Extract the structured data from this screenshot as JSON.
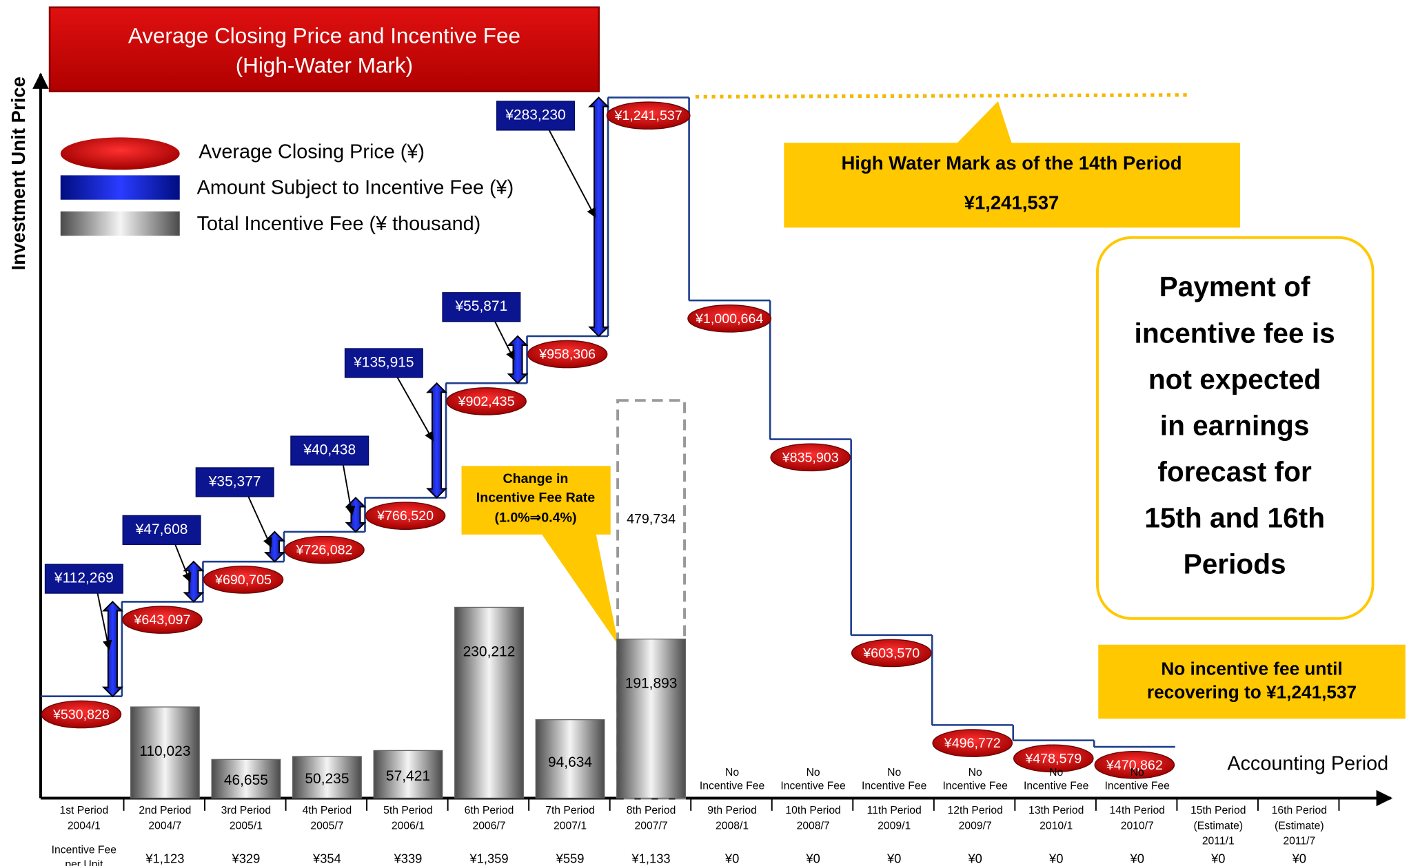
{
  "chart_data": {
    "type": "step",
    "title": "Average Closing Price and Incentive Fee",
    "subtitle": "(High-Water Mark)",
    "y_axis_label": "Investment Unit Price",
    "x_axis_label": "Accounting Period",
    "ylim": [
      410000,
      1266000
    ],
    "y2lim": [
      0,
      870000
    ],
    "categories": [
      "1st Period",
      "2nd Period",
      "3rd Period",
      "4th Period",
      "5th Period",
      "6th Period",
      "7th Period",
      "8th Period",
      "9th Period",
      "10th Period",
      "11th Period",
      "12th Period",
      "13th Period",
      "14th Period",
      "15th Period",
      "16th Period"
    ],
    "estimate_notes": [
      null,
      null,
      null,
      null,
      null,
      null,
      null,
      null,
      null,
      null,
      null,
      null,
      null,
      null,
      "(Estimate)",
      "(Estimate)"
    ],
    "dates": [
      "2004/1",
      "2004/7",
      "2005/1",
      "2005/7",
      "2006/1",
      "2006/7",
      "2007/1",
      "2007/7",
      "2008/1",
      "2008/7",
      "2009/1",
      "2009/7",
      "2010/1",
      "2010/7",
      "2011/1",
      "2011/7"
    ],
    "series": [
      {
        "name": "Average Closing Price (¥)",
        "color": "#cc0000",
        "values": [
          530828,
          643097,
          690705,
          726082,
          766520,
          902435,
          958306,
          1241537,
          1000664,
          835903,
          603570,
          496772,
          478579,
          470862,
          null,
          null
        ],
        "value_labels": [
          "¥530,828",
          "¥643,097",
          "¥690,705",
          "¥726,082",
          "¥766,520",
          "¥902,435",
          "¥958,306",
          "¥1,241,537",
          "¥1,000,664",
          "¥835,903",
          "¥603,570",
          "¥496,772",
          "¥478,579",
          "¥470,862",
          null,
          null
        ]
      },
      {
        "name": "Amount Subject to Incentive Fee (¥)",
        "color": "#0a1a9c",
        "values": [
          null,
          112269,
          47608,
          35377,
          40438,
          135915,
          55871,
          283230,
          null,
          null,
          null,
          null,
          null,
          null,
          null,
          null
        ],
        "value_labels": [
          null,
          "¥112,269",
          "¥47,608",
          "¥35,377",
          "¥40,438",
          "¥135,915",
          "¥55,871",
          "¥283,230",
          null,
          null,
          null,
          null,
          null,
          null,
          null,
          null
        ]
      },
      {
        "name": "Total Incentive Fee (¥ thousand)",
        "color": "#888888",
        "axis": "y2",
        "values": [
          null,
          110023,
          46655,
          50235,
          57421,
          230212,
          94634,
          191893,
          null,
          null,
          null,
          null,
          null,
          null,
          null,
          null
        ],
        "value_labels": [
          null,
          "110,023",
          "46,655",
          "50,235",
          "57,421",
          "230,212",
          "94,634",
          "191,893",
          null,
          null,
          null,
          null,
          null,
          null,
          null,
          null
        ]
      }
    ],
    "estimated_fee": {
      "period": 7,
      "value": 479734,
      "label": "479,734"
    },
    "no_fee_notes": [
      null,
      null,
      null,
      null,
      null,
      null,
      null,
      null,
      [
        "No",
        "Incentive Fee"
      ],
      [
        "No",
        "Incentive Fee"
      ],
      [
        "No",
        "Incentive Fee"
      ],
      [
        "No",
        "Incentive Fee"
      ],
      [
        "No",
        "Incentive Fee"
      ],
      [
        "No",
        "Incentive Fee"
      ],
      null,
      null
    ],
    "fee_per_unit": {
      "label": [
        "Incentive Fee",
        "per Unit"
      ],
      "values": [
        null,
        1123,
        329,
        354,
        339,
        1359,
        559,
        1133,
        0,
        0,
        0,
        0,
        0,
        0,
        0,
        0
      ],
      "value_labels": [
        null,
        "¥1,123",
        "¥329",
        "¥354",
        "¥339",
        "¥1,359",
        "¥559",
        "¥1,133",
        "¥0",
        "¥0",
        "¥0",
        "¥0",
        "¥0",
        "¥0",
        "¥0",
        "¥0"
      ]
    },
    "annotations": {
      "high_water_mark": [
        "High Water Mark as of the 14th Period",
        "¥1,241,537"
      ],
      "rate_change": [
        "Change in",
        "Incentive Fee Rate",
        "(1.0%⇒0.4%)"
      ],
      "payment": [
        "Payment of",
        "incentive fee is",
        "not expected",
        "in earnings",
        "forecast for",
        "15th and 16th",
        "Periods"
      ],
      "no_fee": [
        "No incentive fee until",
        "recovering to ¥1,241,537"
      ]
    }
  }
}
